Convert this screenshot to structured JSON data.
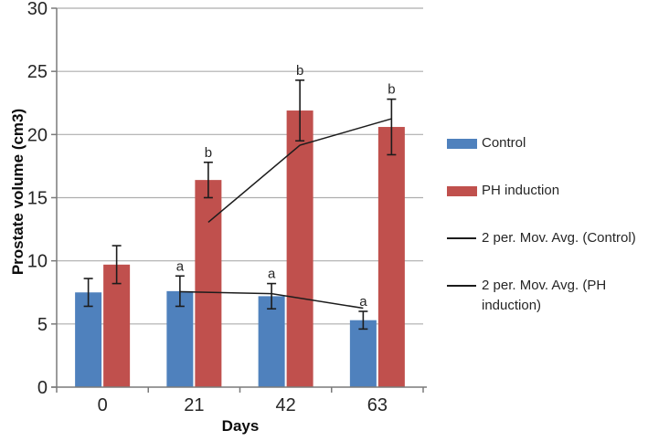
{
  "chart_data": {
    "type": "bar",
    "xlabel": "Days",
    "ylabel": "Prostate volume (cm3)",
    "categories": [
      "0",
      "21",
      "42",
      "63"
    ],
    "ylim": [
      0,
      30
    ],
    "yticks": [
      0,
      5,
      10,
      15,
      20,
      25,
      30
    ],
    "grid": true,
    "legend_position": "right",
    "series": [
      {
        "name": "Control",
        "type": "bar",
        "color": "#4f81bd",
        "values": [
          7.5,
          7.6,
          7.2,
          5.3
        ],
        "error": [
          1.1,
          1.2,
          1.0,
          0.7
        ],
        "point_labels": [
          "",
          "a",
          "a",
          "a"
        ]
      },
      {
        "name": "PH induction",
        "type": "bar",
        "color": "#c0504d",
        "values": [
          9.7,
          16.4,
          21.9,
          20.6
        ],
        "error": [
          1.5,
          1.4,
          2.4,
          2.2
        ],
        "point_labels": [
          "",
          "b",
          "b",
          "b"
        ]
      },
      {
        "name": "2 per. Mov. Avg. (Control)",
        "type": "line",
        "color": "#1c1c1c",
        "anchor_series": "Control",
        "x_categories": [
          "21",
          "42",
          "63"
        ],
        "values": [
          7.55,
          7.4,
          6.25
        ]
      },
      {
        "name": "2 per. Mov. Avg. (PH induction)",
        "type": "line",
        "color": "#1c1c1c",
        "anchor_series": "PH induction",
        "x_categories": [
          "21",
          "42",
          "63"
        ],
        "values": [
          13.05,
          19.15,
          21.25
        ]
      }
    ],
    "colors": {
      "control_bar": "#4f81bd",
      "ph_bar": "#c0504d",
      "trendline": "#1c1c1c",
      "gridline": "#aeaeae",
      "axis": "#7a7a7a",
      "text": "#262626"
    }
  }
}
